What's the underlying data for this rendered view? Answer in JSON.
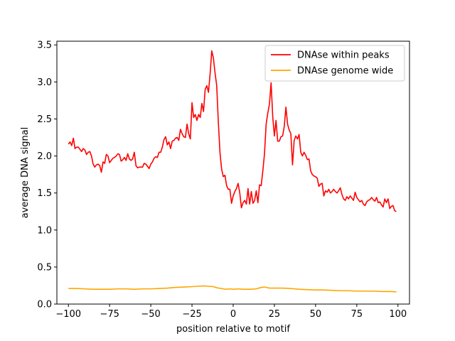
{
  "chart_data": {
    "type": "line",
    "xlabel": "position relative to motif",
    "ylabel": "average DNA signal",
    "xlim": [
      -107,
      107
    ],
    "ylim": [
      0,
      3.55
    ],
    "grid": false,
    "legend_position": "top-right",
    "x_ticks": [
      -100,
      -75,
      -50,
      -25,
      0,
      25,
      50,
      75,
      100
    ],
    "x_tick_labels": [
      "−100",
      "−75",
      "−50",
      "−25",
      "0",
      "25",
      "50",
      "75",
      "100"
    ],
    "y_ticks": [
      0,
      0.5,
      1,
      1.5,
      2,
      2.5,
      3,
      3.5
    ],
    "y_tick_labels": [
      "0.0",
      "0.5",
      "1.0",
      "1.5",
      "2.0",
      "2.5",
      "3.0",
      "3.5"
    ],
    "series": [
      {
        "name": "DNAse within peaks",
        "color": "#ff0000",
        "points": [
          [
            -100,
            2.16
          ],
          [
            -99,
            2.19
          ],
          [
            -98,
            2.14
          ],
          [
            -97,
            2.24
          ],
          [
            -96,
            2.1
          ],
          [
            -95,
            2.12
          ],
          [
            -94,
            2.12
          ],
          [
            -93,
            2.09
          ],
          [
            -92,
            2.06
          ],
          [
            -91,
            2.1
          ],
          [
            -90,
            2.08
          ],
          [
            -89,
            2.02
          ],
          [
            -88,
            2.05
          ],
          [
            -87,
            2.06
          ],
          [
            -86,
            2.0
          ],
          [
            -85,
            1.89
          ],
          [
            -84,
            1.85
          ],
          [
            -83,
            1.88
          ],
          [
            -82,
            1.89
          ],
          [
            -81,
            1.87
          ],
          [
            -80,
            1.78
          ],
          [
            -79,
            1.92
          ],
          [
            -78,
            1.9
          ],
          [
            -77,
            2.02
          ],
          [
            -76,
            2.0
          ],
          [
            -75,
            1.91
          ],
          [
            -74,
            1.94
          ],
          [
            -73,
            1.97
          ],
          [
            -72,
            1.98
          ],
          [
            -71,
            2.0
          ],
          [
            -70,
            2.03
          ],
          [
            -69,
            2.02
          ],
          [
            -68,
            1.93
          ],
          [
            -67,
            1.95
          ],
          [
            -66,
            1.98
          ],
          [
            -65,
            1.94
          ],
          [
            -64,
            2.03
          ],
          [
            -63,
            1.96
          ],
          [
            -62,
            1.94
          ],
          [
            -61,
            1.96
          ],
          [
            -60,
            2.05
          ],
          [
            -59,
            1.87
          ],
          [
            -58,
            1.84
          ],
          [
            -57,
            1.85
          ],
          [
            -56,
            1.85
          ],
          [
            -55,
            1.85
          ],
          [
            -54,
            1.9
          ],
          [
            -53,
            1.89
          ],
          [
            -52,
            1.86
          ],
          [
            -51,
            1.83
          ],
          [
            -50,
            1.89
          ],
          [
            -49,
            1.92
          ],
          [
            -48,
            1.97
          ],
          [
            -47,
            1.99
          ],
          [
            -46,
            1.98
          ],
          [
            -45,
            2.05
          ],
          [
            -44,
            2.05
          ],
          [
            -43,
            2.12
          ],
          [
            -42,
            2.22
          ],
          [
            -41,
            2.26
          ],
          [
            -40,
            2.15
          ],
          [
            -39,
            2.19
          ],
          [
            -38,
            2.1
          ],
          [
            -37,
            2.2
          ],
          [
            -36,
            2.21
          ],
          [
            -35,
            2.24
          ],
          [
            -34,
            2.25
          ],
          [
            -33,
            2.21
          ],
          [
            -32,
            2.36
          ],
          [
            -31,
            2.3
          ],
          [
            -30,
            2.26
          ],
          [
            -29,
            2.25
          ],
          [
            -28,
            2.43
          ],
          [
            -27,
            2.3
          ],
          [
            -26,
            2.23
          ],
          [
            -25,
            2.72
          ],
          [
            -24,
            2.52
          ],
          [
            -23,
            2.56
          ],
          [
            -22,
            2.48
          ],
          [
            -21,
            2.56
          ],
          [
            -20,
            2.52
          ],
          [
            -19,
            2.71
          ],
          [
            -18,
            2.6
          ],
          [
            -17,
            2.9
          ],
          [
            -16,
            2.95
          ],
          [
            -15,
            2.86
          ],
          [
            -14,
            3.11
          ],
          [
            -13,
            3.42
          ],
          [
            -12,
            3.32
          ],
          [
            -11,
            3.12
          ],
          [
            -10,
            2.95
          ],
          [
            -9,
            2.45
          ],
          [
            -8,
            2.04
          ],
          [
            -7,
            1.82
          ],
          [
            -6,
            1.72
          ],
          [
            -5,
            1.74
          ],
          [
            -4,
            1.6
          ],
          [
            -3,
            1.55
          ],
          [
            -2,
            1.55
          ],
          [
            -1,
            1.36
          ],
          [
            0,
            1.46
          ],
          [
            1,
            1.52
          ],
          [
            2,
            1.56
          ],
          [
            3,
            1.63
          ],
          [
            4,
            1.5
          ],
          [
            5,
            1.3
          ],
          [
            6,
            1.37
          ],
          [
            7,
            1.4
          ],
          [
            8,
            1.35
          ],
          [
            9,
            1.56
          ],
          [
            10,
            1.35
          ],
          [
            11,
            1.52
          ],
          [
            12,
            1.36
          ],
          [
            13,
            1.4
          ],
          [
            14,
            1.53
          ],
          [
            15,
            1.37
          ],
          [
            16,
            1.61
          ],
          [
            17,
            1.6
          ],
          [
            18,
            1.8
          ],
          [
            19,
            2.03
          ],
          [
            20,
            2.43
          ],
          [
            21,
            2.58
          ],
          [
            22,
            2.7
          ],
          [
            23,
            2.99
          ],
          [
            24,
            2.53
          ],
          [
            25,
            2.27
          ],
          [
            26,
            2.48
          ],
          [
            27,
            2.2
          ],
          [
            28,
            2.2
          ],
          [
            29,
            2.26
          ],
          [
            30,
            2.27
          ],
          [
            31,
            2.4
          ],
          [
            32,
            2.66
          ],
          [
            33,
            2.43
          ],
          [
            34,
            2.35
          ],
          [
            35,
            2.3
          ],
          [
            36,
            1.88
          ],
          [
            37,
            2.21
          ],
          [
            38,
            2.27
          ],
          [
            39,
            2.23
          ],
          [
            40,
            2.29
          ],
          [
            41,
            2.05
          ],
          [
            42,
            2.0
          ],
          [
            43,
            2.05
          ],
          [
            44,
            2.01
          ],
          [
            45,
            1.95
          ],
          [
            46,
            1.96
          ],
          [
            47,
            1.8
          ],
          [
            48,
            1.75
          ],
          [
            49,
            1.73
          ],
          [
            50,
            1.72
          ],
          [
            51,
            1.7
          ],
          [
            52,
            1.59
          ],
          [
            53,
            1.62
          ],
          [
            54,
            1.63
          ],
          [
            55,
            1.46
          ],
          [
            56,
            1.53
          ],
          [
            57,
            1.51
          ],
          [
            58,
            1.55
          ],
          [
            59,
            1.5
          ],
          [
            60,
            1.52
          ],
          [
            61,
            1.55
          ],
          [
            62,
            1.52
          ],
          [
            63,
            1.5
          ],
          [
            64,
            1.53
          ],
          [
            65,
            1.57
          ],
          [
            66,
            1.48
          ],
          [
            67,
            1.42
          ],
          [
            68,
            1.4
          ],
          [
            69,
            1.45
          ],
          [
            70,
            1.42
          ],
          [
            71,
            1.46
          ],
          [
            72,
            1.43
          ],
          [
            73,
            1.4
          ],
          [
            74,
            1.51
          ],
          [
            75,
            1.44
          ],
          [
            76,
            1.41
          ],
          [
            77,
            1.38
          ],
          [
            78,
            1.4
          ],
          [
            79,
            1.35
          ],
          [
            80,
            1.33
          ],
          [
            81,
            1.38
          ],
          [
            82,
            1.4
          ],
          [
            83,
            1.41
          ],
          [
            84,
            1.44
          ],
          [
            85,
            1.41
          ],
          [
            86,
            1.39
          ],
          [
            87,
            1.44
          ],
          [
            88,
            1.37
          ],
          [
            89,
            1.38
          ],
          [
            90,
            1.34
          ],
          [
            91,
            1.31
          ],
          [
            92,
            1.42
          ],
          [
            93,
            1.37
          ],
          [
            94,
            1.42
          ],
          [
            95,
            1.29
          ],
          [
            96,
            1.32
          ],
          [
            97,
            1.33
          ],
          [
            98,
            1.26
          ],
          [
            99,
            1.25
          ]
        ]
      },
      {
        "name": "DNAse genome wide",
        "color": "#ffa500",
        "points": [
          [
            -100,
            0.21
          ],
          [
            -95,
            0.21
          ],
          [
            -90,
            0.205
          ],
          [
            -85,
            0.2
          ],
          [
            -80,
            0.2
          ],
          [
            -75,
            0.2
          ],
          [
            -70,
            0.205
          ],
          [
            -65,
            0.205
          ],
          [
            -60,
            0.2
          ],
          [
            -55,
            0.205
          ],
          [
            -50,
            0.205
          ],
          [
            -45,
            0.21
          ],
          [
            -40,
            0.215
          ],
          [
            -35,
            0.225
          ],
          [
            -30,
            0.23
          ],
          [
            -25,
            0.235
          ],
          [
            -22,
            0.24
          ],
          [
            -18,
            0.245
          ],
          [
            -15,
            0.24
          ],
          [
            -12,
            0.235
          ],
          [
            -10,
            0.22
          ],
          [
            -7,
            0.21
          ],
          [
            -5,
            0.2
          ],
          [
            -2,
            0.205
          ],
          [
            0,
            0.2
          ],
          [
            3,
            0.205
          ],
          [
            6,
            0.2
          ],
          [
            10,
            0.2
          ],
          [
            14,
            0.205
          ],
          [
            17,
            0.225
          ],
          [
            19,
            0.23
          ],
          [
            22,
            0.215
          ],
          [
            26,
            0.215
          ],
          [
            30,
            0.215
          ],
          [
            35,
            0.21
          ],
          [
            40,
            0.2
          ],
          [
            45,
            0.195
          ],
          [
            50,
            0.19
          ],
          [
            55,
            0.19
          ],
          [
            60,
            0.185
          ],
          [
            65,
            0.18
          ],
          [
            70,
            0.18
          ],
          [
            75,
            0.175
          ],
          [
            80,
            0.175
          ],
          [
            85,
            0.175
          ],
          [
            90,
            0.17
          ],
          [
            95,
            0.17
          ],
          [
            99,
            0.165
          ]
        ]
      }
    ]
  }
}
